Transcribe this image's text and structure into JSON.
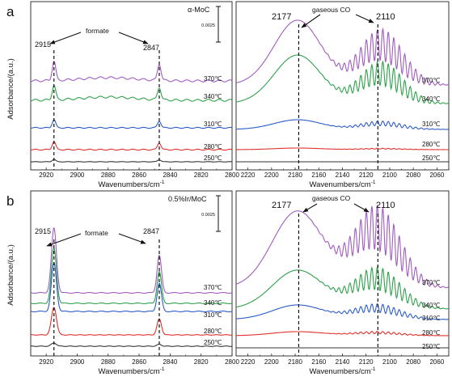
{
  "figure": {
    "ylabel": "Adsorbance/(a.u.)",
    "xlabel": "Wavenumbers/cm",
    "xlabel_sup": "-1"
  },
  "chart_data": [
    {
      "type": "line",
      "panel": "a",
      "sample": "α-MoC",
      "xlim": [
        2930,
        2800
      ],
      "ticks": [
        2920,
        2900,
        2880,
        2860,
        2840,
        2820,
        2800
      ],
      "scale_bar": "0.0025",
      "annotation": "formate",
      "peak_labels": [
        "2915",
        "2847"
      ],
      "peak_x": [
        2915,
        2847
      ],
      "series": [
        {
          "name": "250℃",
          "color": "#333333",
          "baseline": 0.03
        },
        {
          "name": "280℃",
          "color": "#e0302b",
          "baseline": 0.14
        },
        {
          "name": "310℃",
          "color": "#2b5cc8",
          "baseline": 0.28
        },
        {
          "name": "340℃",
          "color": "#2ea24a",
          "baseline": 0.46
        },
        {
          "name": "370℃",
          "color": "#a05cc0",
          "baseline": 0.59
        }
      ]
    },
    {
      "type": "line",
      "panel": "a-CO",
      "annotation": "gaseous CO",
      "xlim": [
        2230,
        2050
      ],
      "ticks": [
        2220,
        2200,
        2180,
        2160,
        2140,
        2120,
        2100,
        2080,
        2060
      ],
      "peak_labels": [
        "2177",
        "2110"
      ],
      "peak_x": [
        2177,
        2110
      ],
      "series": [
        {
          "name": "250℃",
          "color": "#333333"
        },
        {
          "name": "280℃",
          "color": "#e0302b"
        },
        {
          "name": "310℃",
          "color": "#2b5cc8"
        },
        {
          "name": "340℃",
          "color": "#2ea24a"
        },
        {
          "name": "370℃",
          "color": "#a05cc0"
        }
      ]
    },
    {
      "type": "line",
      "panel": "b",
      "sample": "0.5%Ir/MoC",
      "xlim": [
        2930,
        2800
      ],
      "ticks": [
        2920,
        2900,
        2880,
        2860,
        2840,
        2820,
        2800
      ],
      "scale_bar": "0.0025",
      "annotation": "formate",
      "peak_labels": [
        "2915",
        "2847"
      ],
      "peak_x": [
        2915,
        2847
      ],
      "series": [
        {
          "name": "250℃",
          "color": "#333333"
        },
        {
          "name": "280℃",
          "color": "#e0302b"
        },
        {
          "name": "310℃",
          "color": "#2b5cc8"
        },
        {
          "name": "340℃",
          "color": "#2ea24a"
        },
        {
          "name": "370℃",
          "color": "#a05cc0"
        }
      ]
    },
    {
      "type": "line",
      "panel": "b-CO",
      "annotation": "gaseous CO",
      "xlim": [
        2230,
        2050
      ],
      "ticks": [
        2220,
        2200,
        2180,
        2160,
        2140,
        2120,
        2100,
        2080,
        2060
      ],
      "peak_labels": [
        "2177",
        "2110"
      ],
      "peak_x": [
        2177,
        2110
      ],
      "series": [
        {
          "name": "250℃",
          "color": "#333333"
        },
        {
          "name": "280℃",
          "color": "#e0302b"
        },
        {
          "name": "310℃",
          "color": "#2b5cc8"
        },
        {
          "name": "340℃",
          "color": "#2ea24a"
        },
        {
          "name": "370℃",
          "color": "#a05cc0"
        }
      ]
    }
  ]
}
